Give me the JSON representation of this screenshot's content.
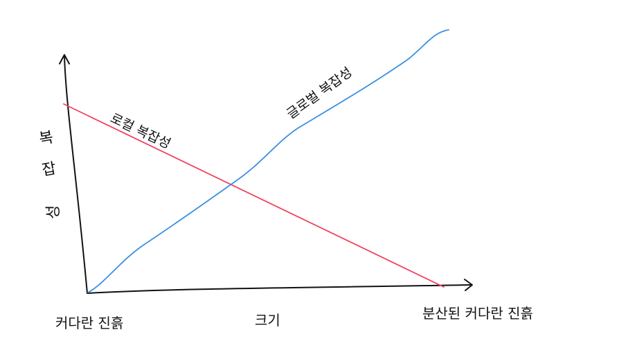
{
  "y_axis_label": [
    "복",
    "잡",
    "성"
  ],
  "x_axis_label": "크기",
  "x_left_label": "커다란 진흙",
  "x_right_label": "분산된 커다란 진흙",
  "local_series_label": "로컬 복잡성",
  "global_series_label": "글로벌 복잡성",
  "colors": {
    "local": "#f0425c",
    "global": "#3b8fe0",
    "ink": "#111111"
  }
}
